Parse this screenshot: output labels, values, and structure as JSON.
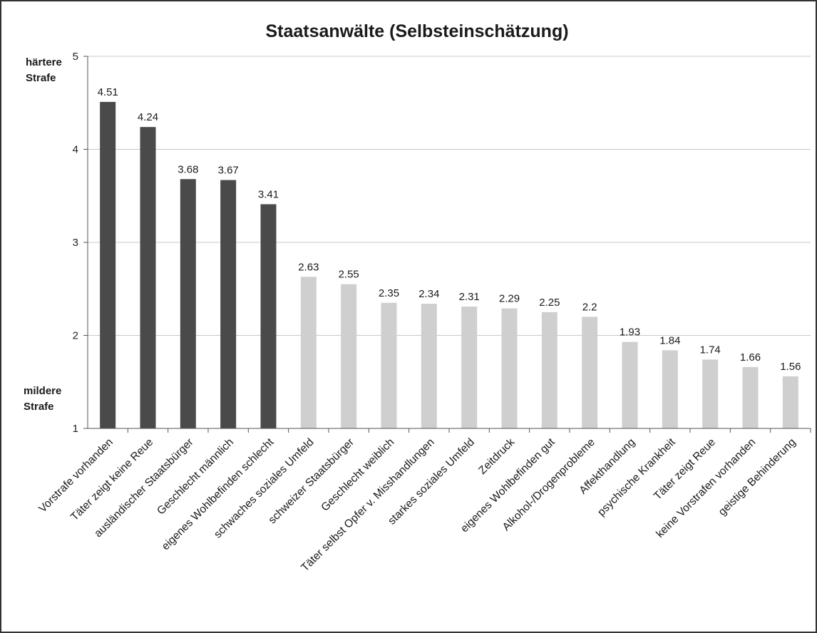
{
  "chart_data": {
    "type": "bar",
    "title": "Staatsanwälte (Selbsteinschätzung)",
    "xlabel": "",
    "ylabel": "",
    "y_top_label": [
      "härtere",
      "Strafe"
    ],
    "y_bottom_label": [
      "mildere",
      "Strafe"
    ],
    "ylim": [
      1,
      5
    ],
    "yticks": [
      "1",
      "2",
      "3",
      "4",
      "5"
    ],
    "grid": true,
    "legend": "none",
    "colors": {
      "dark": "#4a4a4a",
      "light": "#cfcfcf",
      "grid": "#c8c8c8"
    },
    "categories": [
      "Vorstrafe vorhanden",
      "Täter zeigt keine Reue",
      "ausländischer Staatsbürger",
      "Geschlecht männlich",
      "eigenes Wohlbefinden schlecht",
      "schwaches soziales Umfeld",
      "schweizer Staatsbürger",
      "Geschlecht weiblich",
      "Täter selbst Opfer v. Misshandlungen",
      "starkes soziales Umfeld",
      "Zeitdruck",
      "eigenes Wohlbefinden gut",
      "Alkohol-/Drogenprobleme",
      "Affekthandlung",
      "psychische Krankheit",
      "Täter zeigt Reue",
      "keine Vorstrafen vorhanden",
      "geistige Behinderung"
    ],
    "values": [
      4.51,
      4.24,
      3.68,
      3.67,
      3.41,
      2.63,
      2.55,
      2.35,
      2.34,
      2.31,
      2.29,
      2.25,
      2.2,
      1.93,
      1.84,
      1.74,
      1.66,
      1.56
    ],
    "value_labels": [
      "4.51",
      "4.24",
      "3.68",
      "3.67",
      "3.41",
      "2.63",
      "2.55",
      "2.35",
      "2.34",
      "2.31",
      "2.29",
      "2.25",
      "2.2",
      "1.93",
      "1.84",
      "1.74",
      "1.66",
      "1.56"
    ],
    "bar_shade": [
      "dark",
      "dark",
      "dark",
      "dark",
      "dark",
      "light",
      "light",
      "light",
      "light",
      "light",
      "light",
      "light",
      "light",
      "light",
      "light",
      "light",
      "light",
      "light"
    ]
  }
}
